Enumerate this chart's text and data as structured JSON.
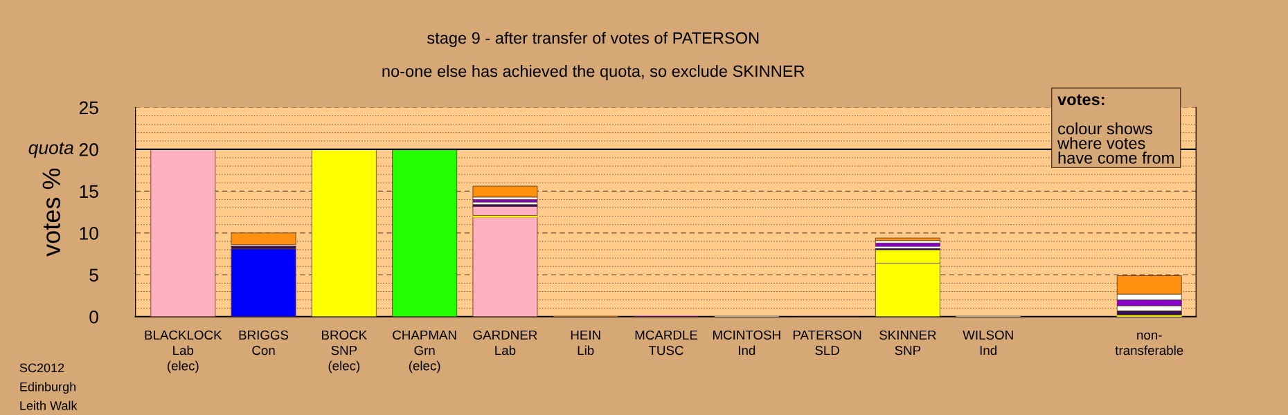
{
  "chart_data": {
    "type": "bar",
    "stacked": true,
    "title": "stage 9 - after transfer of votes of PATERSON",
    "subtitle": "no-one else has achieved the quota, so exclude SKINNER",
    "ylabel": "votes %",
    "categories": [
      "BLACKLOCK\nLab\n(elec)",
      "BRIGGS\nCon",
      "BROCK\nSNP\n(elec)",
      "CHAPMAN\nGrn\n(elec)",
      "GARDNER\nLab",
      "HEIN\nLib",
      "MCARDLE\nTUSC",
      "MCINTOSH\nInd",
      "PATERSON\nSLD",
      "SKINNER\nSNP",
      "WILSON\nInd",
      null,
      "non-\ntransferable"
    ],
    "series": [
      {
        "colors": [
          "#ffb0c0",
          "#0000ff",
          "#ffff00",
          "#22ff00",
          "#ffb0c0",
          "#ff9010",
          "#8800cc",
          "#ffffff",
          "#301050",
          "#ffff00",
          "#ffffff",
          null,
          "#ffff00"
        ],
        "values": [
          20,
          8.1,
          20,
          20,
          11.9,
          0,
          0,
          0,
          0,
          6.4,
          0,
          null,
          0
        ]
      },
      {
        "color": "#ffff00",
        "values": [
          0,
          0,
          0,
          0,
          0.2,
          0,
          0,
          0,
          0,
          1.6,
          0,
          null,
          0.2
        ]
      },
      {
        "color": "#ffb0c0",
        "values": [
          0,
          0,
          0,
          0,
          1.1,
          0,
          0,
          0,
          0,
          0,
          0,
          null,
          0
        ]
      },
      {
        "color": "#301050",
        "values": [
          0,
          0.4,
          0,
          0,
          0.2,
          0,
          0,
          0,
          0,
          0.2,
          0,
          null,
          0.5
        ]
      },
      {
        "color": "#ffffff",
        "values": [
          0,
          0.1,
          0,
          0,
          0.3,
          0,
          0,
          0,
          0,
          0.2,
          0,
          null,
          0.6
        ]
      },
      {
        "color": "#8800cc",
        "values": [
          0,
          0,
          0,
          0,
          0.3,
          0,
          0,
          0,
          0,
          0.4,
          0,
          null,
          0.7
        ]
      },
      {
        "color": "#ffffff",
        "values": [
          0,
          0,
          0,
          0,
          0.3,
          0,
          0,
          0,
          0,
          0.3,
          0,
          null,
          0.7
        ]
      },
      {
        "color": "#ff9010",
        "values": [
          0,
          1.4,
          0,
          0,
          1.3,
          0,
          0,
          0,
          0,
          0.3,
          0,
          null,
          2.2
        ]
      }
    ],
    "ylim": [
      0,
      25
    ],
    "yticks": [
      0,
      {
        "value": 1,
        "label": null
      },
      {
        "value": 2,
        "label": null
      },
      {
        "value": 3,
        "label": null
      },
      {
        "value": 4,
        "label": null
      },
      5,
      {
        "value": 6,
        "label": null
      },
      {
        "value": 7,
        "label": null
      },
      {
        "value": 8,
        "label": null
      },
      {
        "value": 9,
        "label": null
      },
      10,
      {
        "value": 11,
        "label": null
      },
      {
        "value": 12,
        "label": null
      },
      {
        "value": 13,
        "label": null
      },
      {
        "value": 14,
        "label": null
      },
      15,
      {
        "value": 16,
        "label": null
      },
      {
        "value": 17,
        "label": null
      },
      {
        "value": 18,
        "label": null
      },
      {
        "value": 19,
        "label": null
      },
      20,
      {
        "value": 21,
        "label": null
      },
      {
        "value": 22,
        "label": null
      },
      {
        "value": 23,
        "label": null
      },
      {
        "value": 24,
        "label": null
      },
      25
    ],
    "grid": "y",
    "ref_lines": [
      {
        "axis": "y",
        "value": 20,
        "label": "quota",
        "color": "#000000",
        "line_style": "solid"
      }
    ],
    "annotations": [
      "votes:",
      "colour shows\nwhere votes\nhave come from",
      "SC2012\nEdinburgh\nLeith Walk"
    ]
  }
}
